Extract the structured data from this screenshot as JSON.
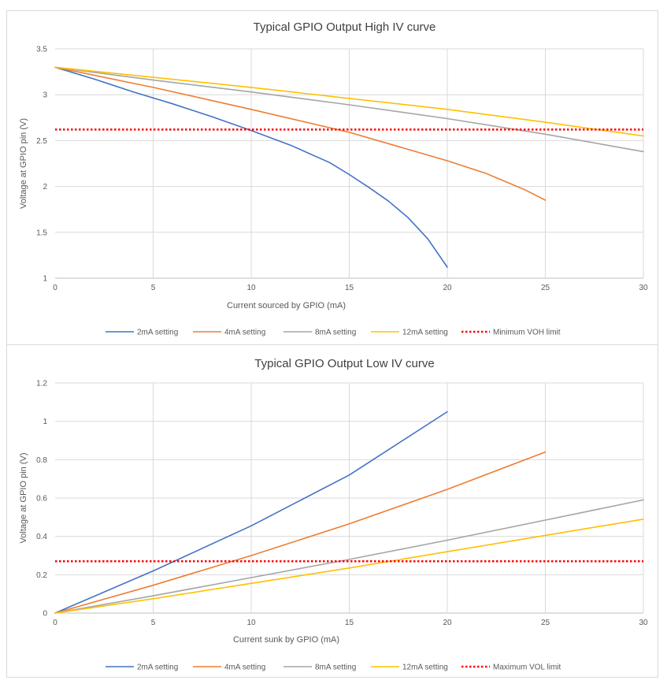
{
  "chart_data": [
    {
      "type": "line",
      "title": "Typical GPIO Output High IV curve",
      "xlabel": "Current sourced by GPIO (mA)",
      "ylabel": "Voltage at GPIO pin (V)",
      "xlim": [
        0,
        30
      ],
      "ylim": [
        1,
        3.5
      ],
      "x_ticks": [
        0,
        5,
        10,
        15,
        20,
        25,
        30
      ],
      "y_ticks": [
        1,
        1.5,
        2,
        2.5,
        3,
        3.5
      ],
      "x_tick_labels": [
        "0",
        "5",
        "10",
        "15",
        "20",
        "25",
        "30"
      ],
      "y_tick_labels": [
        "1",
        "1.5",
        "2",
        "2.5",
        "3",
        "3.5"
      ],
      "grid": true,
      "legend_position": "bottom",
      "series": [
        {
          "name": "2mA setting",
          "color": "#4472C4",
          "dashed": false,
          "x": [
            0,
            2,
            4,
            6,
            8,
            10,
            12,
            14,
            15,
            16,
            17,
            18,
            19,
            20
          ],
          "y": [
            3.3,
            3.17,
            3.03,
            2.9,
            2.76,
            2.61,
            2.45,
            2.26,
            2.13,
            1.99,
            1.84,
            1.66,
            1.43,
            1.12
          ]
        },
        {
          "name": "4mA setting",
          "color": "#ED7D31",
          "dashed": false,
          "x": [
            0,
            5,
            10,
            15,
            20,
            22,
            24,
            25
          ],
          "y": [
            3.3,
            3.08,
            2.84,
            2.59,
            2.28,
            2.14,
            1.96,
            1.85
          ]
        },
        {
          "name": "8mA setting",
          "color": "#A5A5A5",
          "dashed": false,
          "x": [
            0,
            5,
            10,
            15,
            20,
            25,
            30
          ],
          "y": [
            3.3,
            3.16,
            3.03,
            2.89,
            2.74,
            2.57,
            2.38
          ]
        },
        {
          "name": "12mA setting",
          "color": "#FFC000",
          "dashed": false,
          "x": [
            0,
            5,
            10,
            15,
            20,
            25,
            30
          ],
          "y": [
            3.3,
            3.19,
            3.08,
            2.96,
            2.84,
            2.7,
            2.55
          ]
        },
        {
          "name": "Minimum VOH limit",
          "color": "#FF0000",
          "dashed": true,
          "x": [
            0,
            30
          ],
          "y": [
            2.62,
            2.62
          ]
        }
      ]
    },
    {
      "type": "line",
      "title": "Typical GPIO Output Low IV curve",
      "xlabel": "Current sunk by GPIO (mA)",
      "ylabel": "Voltage at GPIO pin (V)",
      "xlim": [
        0,
        30
      ],
      "ylim": [
        0,
        1.2
      ],
      "x_ticks": [
        0,
        5,
        10,
        15,
        20,
        25,
        30
      ],
      "y_ticks": [
        0,
        0.2,
        0.4,
        0.6,
        0.8,
        1,
        1.2
      ],
      "x_tick_labels": [
        "0",
        "5",
        "10",
        "15",
        "20",
        "25",
        "30"
      ],
      "y_tick_labels": [
        "0",
        "0.2",
        "0.4",
        "0.6",
        "0.8",
        "1",
        "1.2"
      ],
      "grid": true,
      "legend_position": "bottom",
      "series": [
        {
          "name": "2mA setting",
          "color": "#4472C4",
          "dashed": false,
          "x": [
            0,
            5,
            10,
            15,
            20
          ],
          "y": [
            0,
            0.22,
            0.455,
            0.72,
            1.05
          ]
        },
        {
          "name": "4mA setting",
          "color": "#ED7D31",
          "dashed": false,
          "x": [
            0,
            5,
            10,
            15,
            20,
            25
          ],
          "y": [
            0,
            0.145,
            0.3,
            0.465,
            0.645,
            0.84
          ]
        },
        {
          "name": "8mA setting",
          "color": "#A5A5A5",
          "dashed": false,
          "x": [
            0,
            5,
            10,
            15,
            20,
            25,
            30
          ],
          "y": [
            0,
            0.09,
            0.185,
            0.28,
            0.38,
            0.485,
            0.59
          ]
        },
        {
          "name": "12mA setting",
          "color": "#FFC000",
          "dashed": false,
          "x": [
            0,
            5,
            10,
            15,
            20,
            25,
            30
          ],
          "y": [
            0,
            0.075,
            0.155,
            0.235,
            0.32,
            0.405,
            0.49
          ]
        },
        {
          "name": "Maximum VOL limit",
          "color": "#FF0000",
          "dashed": true,
          "x": [
            0,
            30
          ],
          "y": [
            0.27,
            0.27
          ]
        }
      ]
    }
  ]
}
